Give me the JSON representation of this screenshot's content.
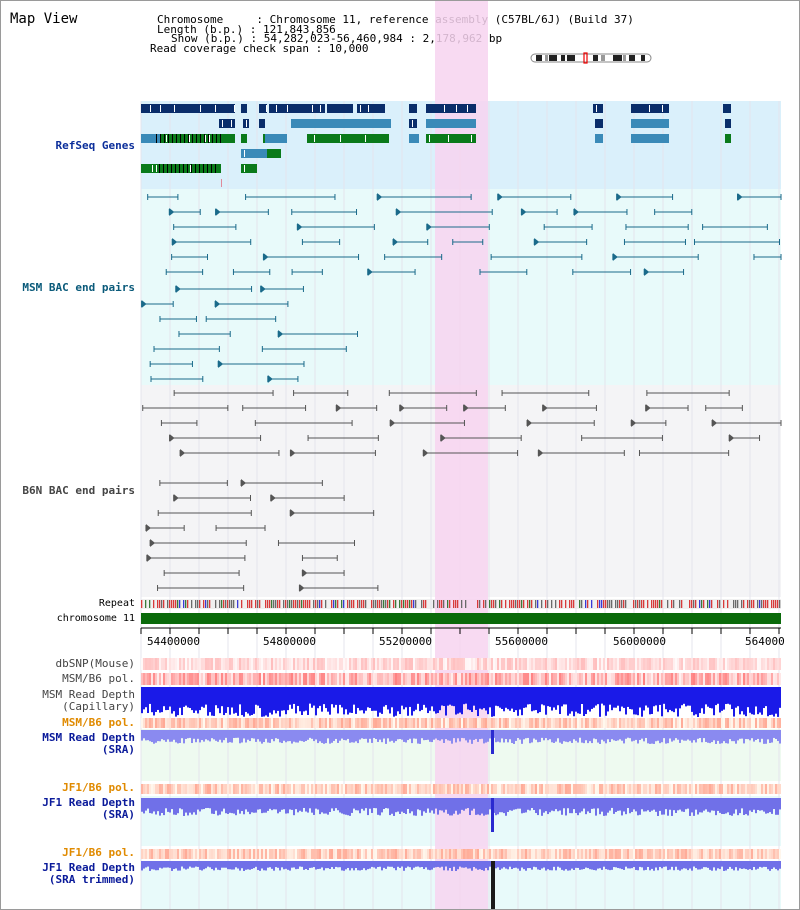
{
  "window": {
    "title": "Map View"
  },
  "header": {
    "chromosome_label": "Chromosome     : Chromosome 11, reference assembly (C57BL/6J) (Build 37)",
    "length_label": "Length (b.p.) : 121,843,856",
    "show_label": "Show (b.p.) : 54,282,023-56,460,984 : 2,178,962 bp",
    "coverage_label": "Read coverage check span : 10,000"
  },
  "tracks": {
    "refseq": {
      "label": "RefSeq Genes",
      "color": "#0a2d8a"
    },
    "msm_bac": {
      "label": "MSM BAC end pairs",
      "color": "#0a5a7a"
    },
    "b6n_bac": {
      "label": "B6N BAC end pairs",
      "color": "#333333"
    },
    "repeat": {
      "label": "Repeat"
    },
    "chromosome": {
      "label": "chromosome 11"
    },
    "dbsnp": {
      "label": "dbSNP(Mouse)"
    },
    "msm_b6_pol_1": {
      "label": "MSM/B6 pol."
    },
    "msm_read_cap": {
      "label": "MSM Read Depth\n(Capillary)"
    },
    "msm_b6_pol_2": {
      "label": "MSM/B6 pol."
    },
    "msm_read_sra": {
      "label": "MSM Read Depth\n(SRA)"
    },
    "jf1_b6_pol_1": {
      "label": "JF1/B6 pol."
    },
    "jf1_read_sra": {
      "label": "JF1 Read Depth\n(SRA)"
    },
    "jf1_b6_pol_2": {
      "label": "JF1/B6 pol."
    },
    "jf1_read_trim": {
      "label": "JF1 Read Depth\n(SRA trimmed)"
    }
  },
  "axis": {
    "ticks": [
      "54400000",
      "54800000",
      "55200000",
      "55600000",
      "56000000",
      "564000"
    ]
  },
  "colors": {
    "highlight": "#f7d4f0",
    "refseq_dark": "#0a2d6a",
    "refseq_light": "#3a8ab8",
    "refseq_green": "#0a7a1a",
    "orange_label": "#e08a00",
    "blue_label": "#0a1a9a"
  }
}
